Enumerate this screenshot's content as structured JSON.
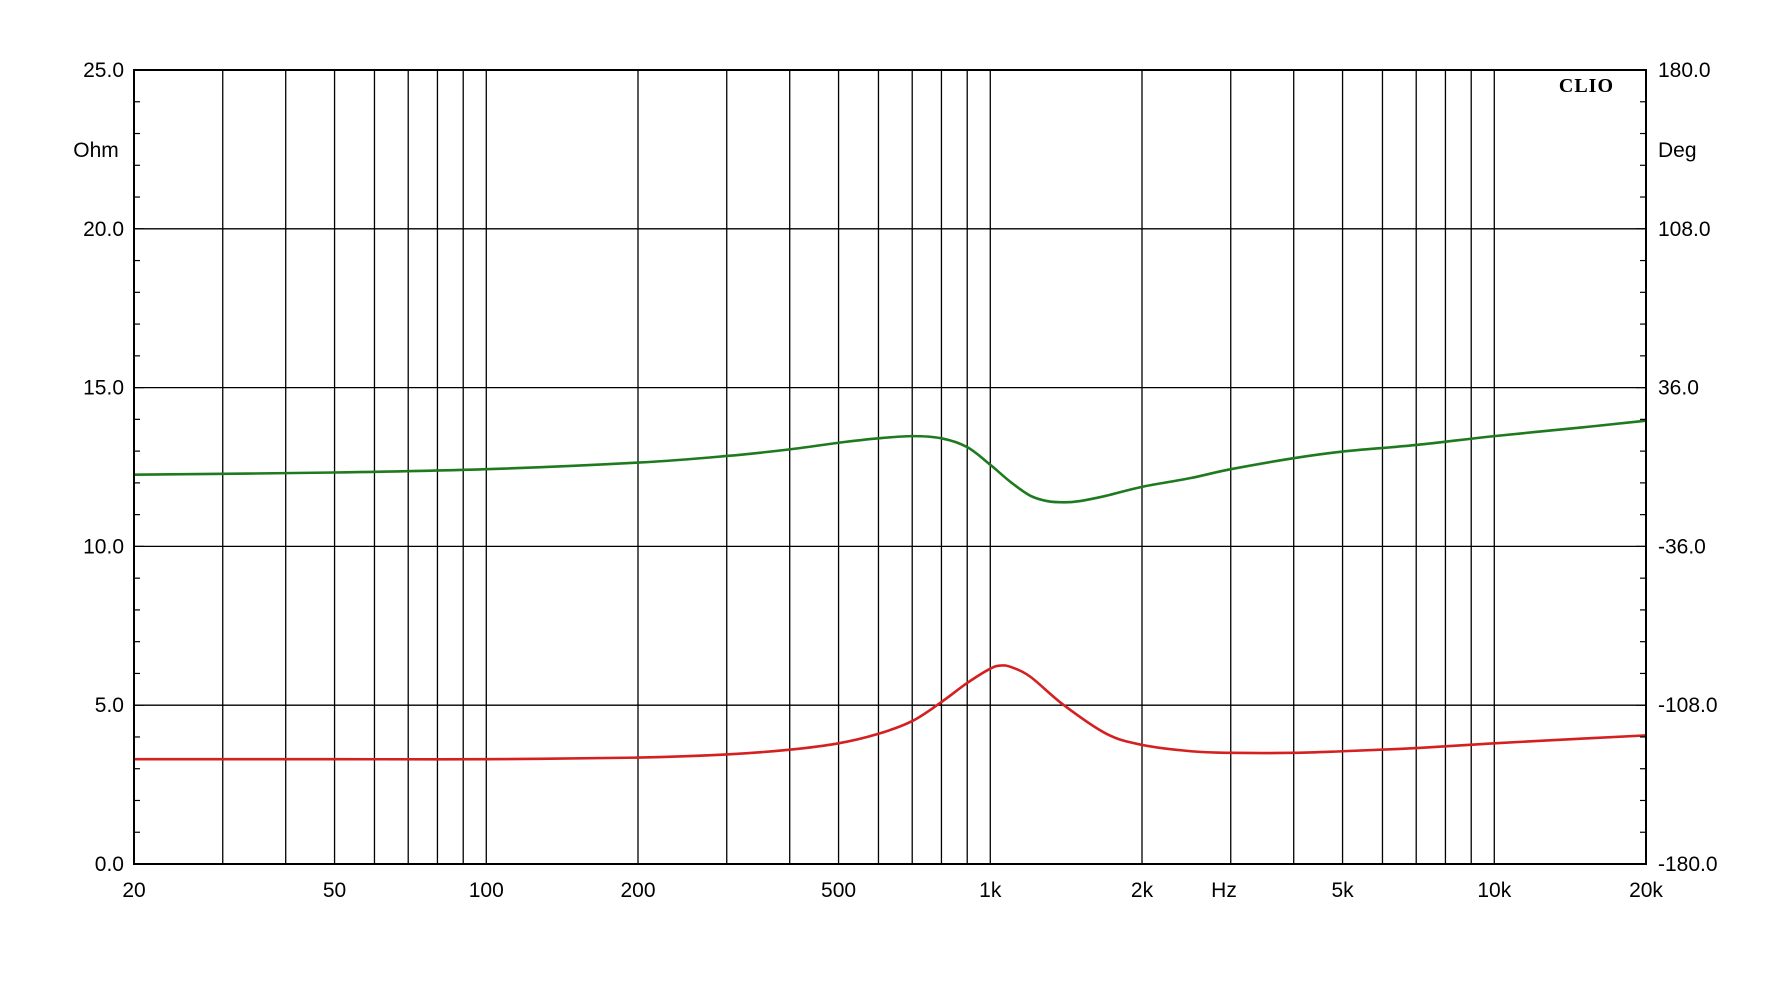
{
  "chart_data": {
    "type": "line",
    "brand": "CLIO",
    "x_scale": "log",
    "xlim": [
      20,
      20000
    ],
    "xlabel": "Hz",
    "x_tick_values": [
      20,
      50,
      100,
      200,
      500,
      1000,
      2000,
      5000,
      10000,
      20000
    ],
    "x_tick_labels": [
      "20",
      "50",
      "100",
      "200",
      "500",
      "1k",
      "2k",
      "5k",
      "10k",
      "20k"
    ],
    "x_minor_values": [
      30,
      40,
      60,
      70,
      80,
      90,
      300,
      400,
      600,
      700,
      800,
      900,
      3000,
      4000,
      6000,
      7000,
      8000,
      9000
    ],
    "grid": true,
    "y_left": {
      "label": "Ohm",
      "lim": [
        0,
        25
      ],
      "tick_values": [
        0,
        5,
        10,
        15,
        20,
        25
      ],
      "tick_labels": [
        "0.0",
        "5.0",
        "10.0",
        "15.0",
        "20.0",
        "25.0"
      ]
    },
    "y_right": {
      "label": "Deg",
      "lim": [
        -180,
        180
      ],
      "tick_values": [
        -180,
        -108,
        -36,
        36,
        108,
        180
      ],
      "tick_labels": [
        "-180.0",
        "-108.0",
        "-36.0",
        "36.0",
        "108.0",
        "180.0"
      ]
    },
    "series": [
      {
        "axis": "left",
        "color": "#d42020",
        "x": [
          20,
          50,
          100,
          200,
          300,
          400,
          500,
          600,
          700,
          800,
          900,
          1000,
          1050,
          1100,
          1200,
          1400,
          1700,
          2000,
          2500,
          3000,
          4000,
          5000,
          7000,
          10000,
          15000,
          20000
        ],
        "values": [
          3.3,
          3.3,
          3.3,
          3.35,
          3.45,
          3.6,
          3.8,
          4.1,
          4.5,
          5.1,
          5.7,
          6.15,
          6.25,
          6.2,
          5.9,
          5.0,
          4.1,
          3.75,
          3.55,
          3.5,
          3.5,
          3.55,
          3.65,
          3.8,
          3.95,
          4.05
        ]
      },
      {
        "axis": "right",
        "color": "#1e7a1e",
        "x": [
          20,
          50,
          100,
          200,
          300,
          400,
          500,
          600,
          700,
          800,
          900,
          1000,
          1100,
          1200,
          1300,
          1400,
          1500,
          1700,
          2000,
          2500,
          3000,
          4000,
          5000,
          7000,
          10000,
          15000,
          20000
        ],
        "values": [
          -3.5,
          -2.5,
          -1,
          2,
          5,
          8,
          11,
          13,
          14,
          13,
          9,
          1,
          -7,
          -13,
          -15.5,
          -16,
          -15.5,
          -13,
          -9,
          -5,
          -1,
          4,
          7,
          10,
          14,
          18,
          21
        ]
      }
    ]
  }
}
